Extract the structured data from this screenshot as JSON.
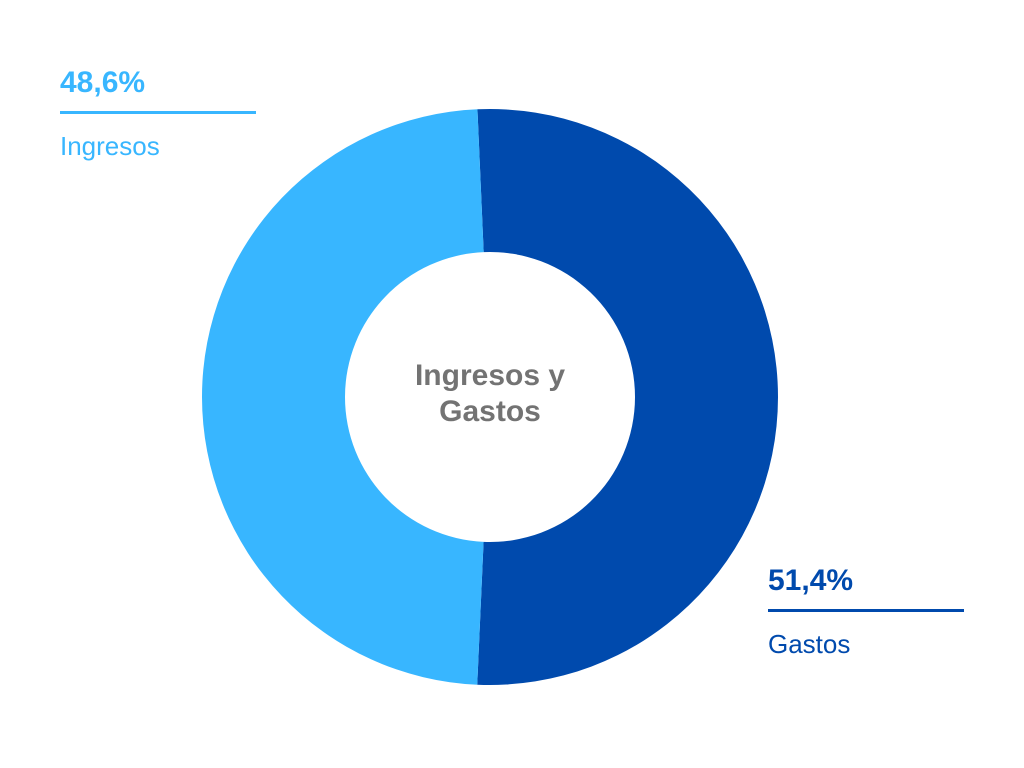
{
  "chart_data": {
    "type": "pie",
    "variant": "donut",
    "center_label": [
      "Ingresos y",
      "Gastos"
    ],
    "slices": [
      {
        "label": "Gastos",
        "value": 51.4,
        "display": "51,4%",
        "color": "#004aad"
      },
      {
        "label": "Ingresos",
        "value": 48.6,
        "display": "48,6%",
        "color": "#38b6ff"
      }
    ],
    "start_angle_deg": -2.5,
    "direction": "clockwise",
    "label_color": "#737373"
  }
}
